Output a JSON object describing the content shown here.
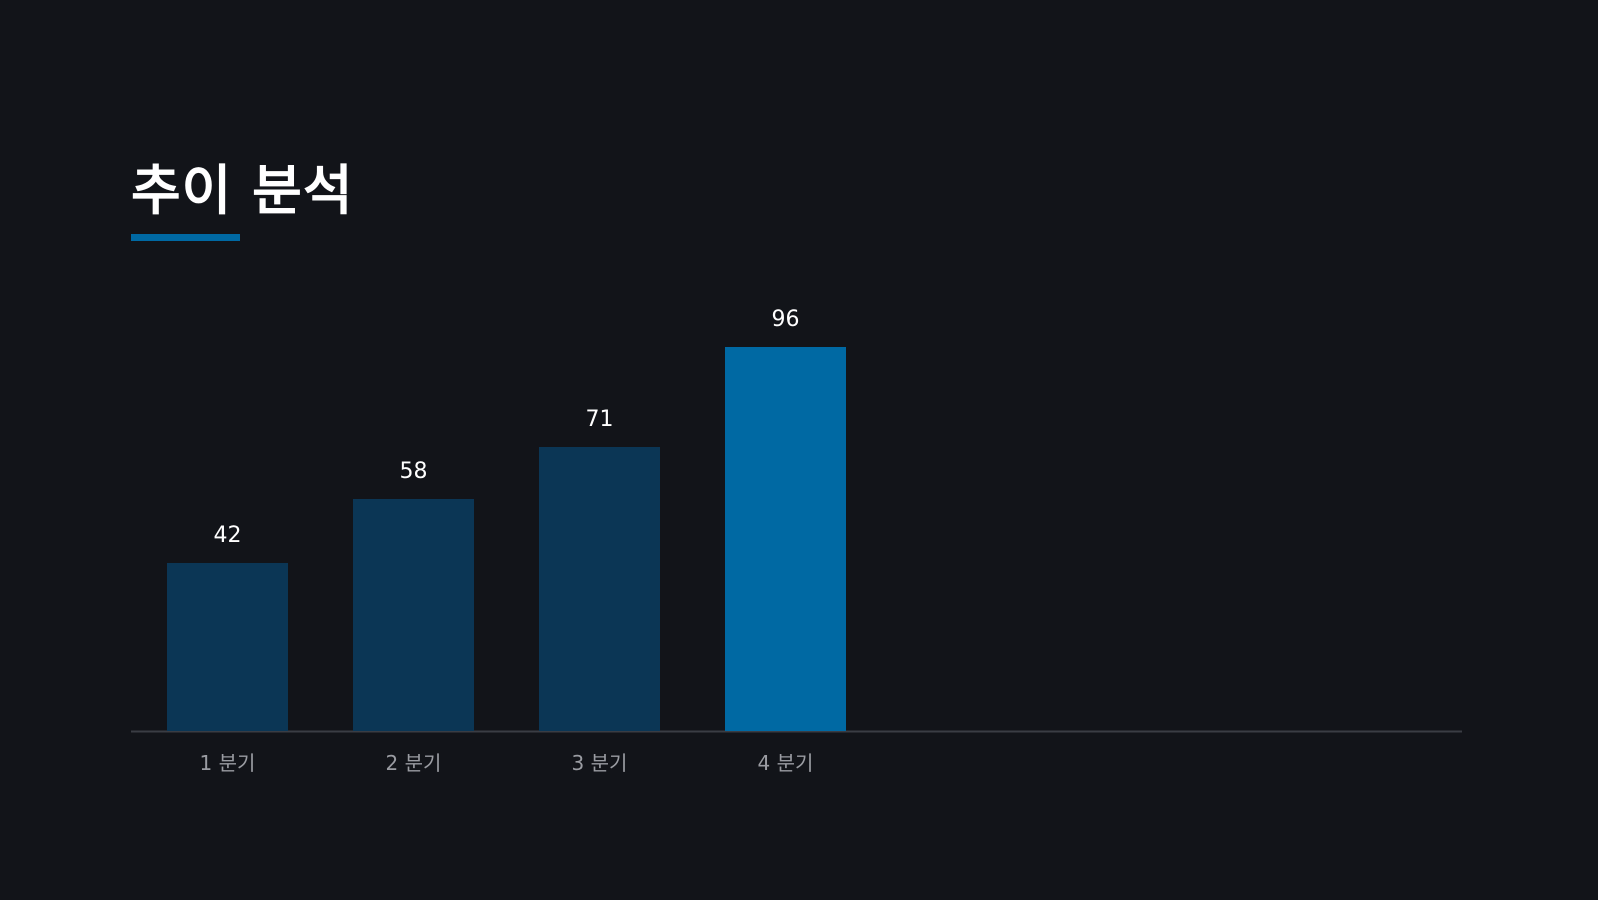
{
  "slide": {
    "title": "추이 분석"
  },
  "colors": {
    "background": "#121419",
    "bar": "#0b3655",
    "bar_highlight": "#0069a3",
    "accent": "#0069a3",
    "axis": "#3a3d44",
    "value_label": "#ffffff",
    "tick_label": "#9a9ca2"
  },
  "chart_data": {
    "type": "bar",
    "categories": [
      "1 분기",
      "2 분기",
      "3 분기",
      "4 분기"
    ],
    "values": [
      42,
      58,
      71,
      96
    ],
    "highlight_index": 3,
    "title": "",
    "xlabel": "",
    "ylabel": "",
    "ylim": [
      0,
      100
    ],
    "grid": false,
    "legend": "none",
    "data_labels": true
  }
}
